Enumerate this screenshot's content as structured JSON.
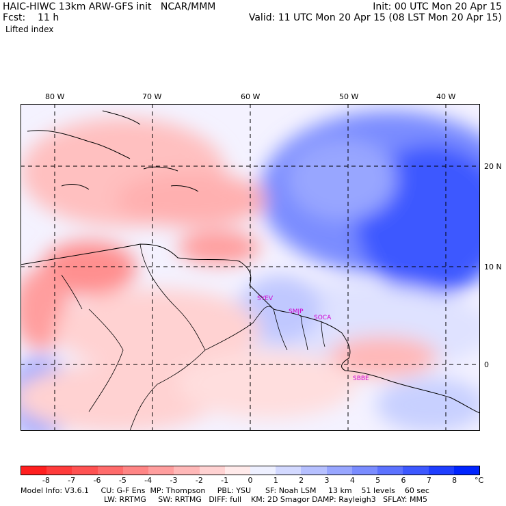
{
  "header": {
    "title": "HAIC-HIWC 13km ARW-GFS init   NCAR/MMM",
    "init": "Init: 00 UTC Mon 20 Apr 15",
    "fcst": "Fcst:    11 h",
    "valid": "Valid: 11 UTC Mon 20 Apr 15 (08 LST Mon 20 Apr 15)",
    "field": "Lifted index"
  },
  "map": {
    "lon_labels": [
      "80 W",
      "70 W",
      "60 W",
      "50 W",
      "40 W"
    ],
    "lat_labels": [
      "20 N",
      "10 N",
      "0"
    ],
    "stations": [
      "SYEV",
      "SMJP",
      "SOCA",
      "SBBE"
    ]
  },
  "colorbar": {
    "labels": [
      "-8",
      "-7",
      "-6",
      "-5",
      "-4",
      "-3",
      "-2",
      "-1",
      "0",
      "1",
      "2",
      "3",
      "4",
      "5",
      "6",
      "7",
      "8"
    ],
    "unit": "°C",
    "colors": [
      "#ff1f1f",
      "#ff3b3b",
      "#ff5252",
      "#ff6b6b",
      "#ff8585",
      "#ff9e9e",
      "#ffb8b8",
      "#ffd2d2",
      "#ffeaea",
      "#eef0ff",
      "#d3d9ff",
      "#b6c0ff",
      "#98a6ff",
      "#7a8cff",
      "#5c72ff",
      "#3d58ff",
      "#1f3eff",
      "#0024ff"
    ]
  },
  "footer": {
    "line1": "Model Info: V3.6.1     CU: G-F Ens  MP: Thompson     PBL: YSU      SF: Noah LSM     13 km    51 levels    60 sec",
    "line2": "LW: RRTMG     SW: RRTMG   DIFF: full    KM: 2D Smagor DAMP: Rayleigh3   SFLAY: MM5"
  }
}
